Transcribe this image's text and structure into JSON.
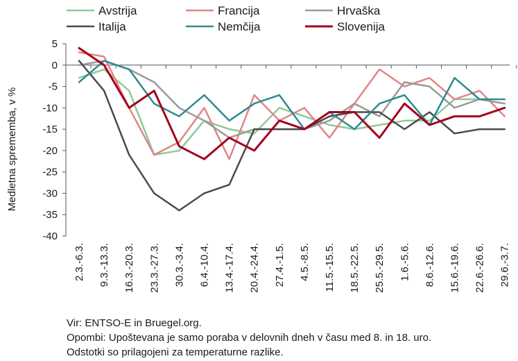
{
  "chart_data": {
    "type": "line",
    "ylabel": "Medletna sprememba, v %",
    "ylim": [
      -40,
      5
    ],
    "yticks": [
      5,
      0,
      -5,
      -10,
      -15,
      -20,
      -25,
      -30,
      -35,
      -40
    ],
    "grid": false,
    "legend_position": "top",
    "categories": [
      "2.3.-6.3.",
      "9.3.-13.3.",
      "16.3.-20.3.",
      "23.3.-27.3.",
      "30.3.-3.4.",
      "6.4.-10.4.",
      "13.4.-17.4.",
      "20.4.-24.4.",
      "27.4.-1.5.",
      "4.5.-8.5.",
      "11.5.-15.5.",
      "18.5.-22.5.",
      "25.5.-29.5.",
      "1.6.-5.6.",
      "8.6.-12.6.",
      "15.6.-19.6.",
      "22.6.-26.6.",
      "29.6.-3.7."
    ],
    "series": [
      {
        "name": "Avstrija",
        "color": "#8fc99a",
        "width": 2.5,
        "values": [
          -3,
          -1,
          -6,
          -21,
          -20,
          -13,
          -15,
          -16,
          -10,
          -12,
          -14,
          -15,
          -14,
          -13,
          -13,
          -8,
          -8,
          -9
        ]
      },
      {
        "name": "Francija",
        "color": "#e08585",
        "width": 2.5,
        "values": [
          3,
          2,
          -10,
          -21,
          -18,
          -10,
          -22,
          -7,
          -13,
          -10,
          -17,
          -9,
          -1,
          -5,
          -3,
          -8,
          -6,
          -12
        ]
      },
      {
        "name": "Hrvaška",
        "color": "#9a9a9a",
        "width": 2.5,
        "values": [
          0,
          1,
          -1,
          -4,
          -10,
          -13,
          -17,
          -15,
          -15,
          -15,
          -13,
          -9,
          -12,
          -4,
          -5,
          -10,
          -8,
          -9
        ]
      },
      {
        "name": "Italija",
        "color": "#4a4a4a",
        "width": 2.5,
        "values": [
          1,
          -6,
          -21,
          -30,
          -34,
          -30,
          -28,
          -15,
          -15,
          -15,
          -12,
          -11,
          -11,
          -15,
          -11,
          -16,
          -15,
          -15
        ]
      },
      {
        "name": "Nemčija",
        "color": "#2e8a8e",
        "width": 2.5,
        "values": [
          -4,
          1,
          -1,
          -9,
          -12,
          -7,
          -13,
          -9,
          -7,
          -15,
          -11,
          -15,
          -9,
          -7,
          -14,
          -3,
          -8,
          -8
        ]
      },
      {
        "name": "Slovenija",
        "color": "#a3001e",
        "width": 3,
        "values": [
          4,
          0,
          -10,
          -6,
          -19,
          -22,
          -17,
          -20,
          -13,
          -15,
          -11,
          -11,
          -17,
          -9,
          -14,
          -12,
          -12,
          -10
        ]
      }
    ]
  },
  "notes": {
    "source": "Vir: ENTSO-E in Bruegel.org.",
    "note1": "Opombi: Upoštevana je samo poraba v delovnih dneh v času med 8. in 18. uro.",
    "note2": "Odstotki so prilagojeni za temperaturne razlike."
  }
}
